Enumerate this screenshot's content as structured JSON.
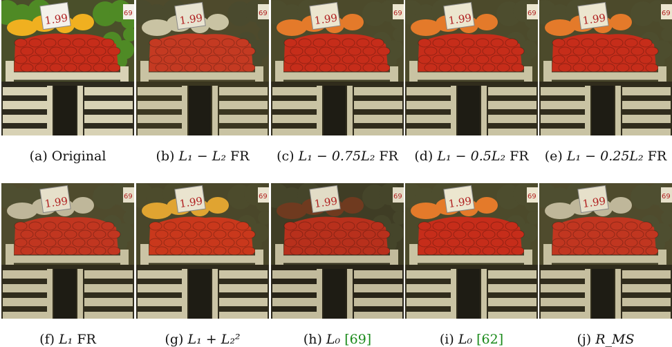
{
  "figure": {
    "panels": [
      {
        "label": "(a)",
        "pre": "",
        "math": "",
        "post": "Original",
        "cite": "",
        "style": "orig"
      },
      {
        "label": "(b)",
        "pre": "",
        "math": "L₁ − L₂",
        "post": "FR",
        "cite": "",
        "style": "q1"
      },
      {
        "label": "(c)",
        "pre": "",
        "math": "L₁ − 0.75L₂",
        "post": "FR",
        "cite": "",
        "style": "q2"
      },
      {
        "label": "(d)",
        "pre": "",
        "math": "L₁ − 0.5L₂",
        "post": "FR",
        "cite": "",
        "style": "q2"
      },
      {
        "label": "(e)",
        "pre": "",
        "math": "L₁ − 0.25L₂",
        "post": "FR",
        "cite": "",
        "style": "q2"
      },
      {
        "label": "(f)",
        "pre": "",
        "math": "L₁",
        "post": "FR",
        "cite": "",
        "style": "q3"
      },
      {
        "label": "(g)",
        "pre": "",
        "math": "L₁ + L₂²",
        "post": "",
        "cite": "",
        "style": "q4"
      },
      {
        "label": "(h)",
        "pre": "",
        "math": "L₀",
        "post": "",
        "cite": "[69]",
        "style": "q5"
      },
      {
        "label": "(i)",
        "pre": "",
        "math": "L₀",
        "post": "",
        "cite": "[62]",
        "style": "q2"
      },
      {
        "label": "(j)",
        "pre": "",
        "math": "R_MS",
        "post": "",
        "cite": "",
        "style": "q3"
      }
    ],
    "sign_text": "1.99",
    "sign_text_small": "69",
    "colors": {
      "pepper_red": "#c62d1a",
      "pepper_orange": "#e47a2a",
      "pepper_green": "#5b7a2c",
      "crate_light": "#c9c3a3",
      "crate_dark": "#2d2a1e",
      "citation_green": "#1a8a1a"
    }
  }
}
